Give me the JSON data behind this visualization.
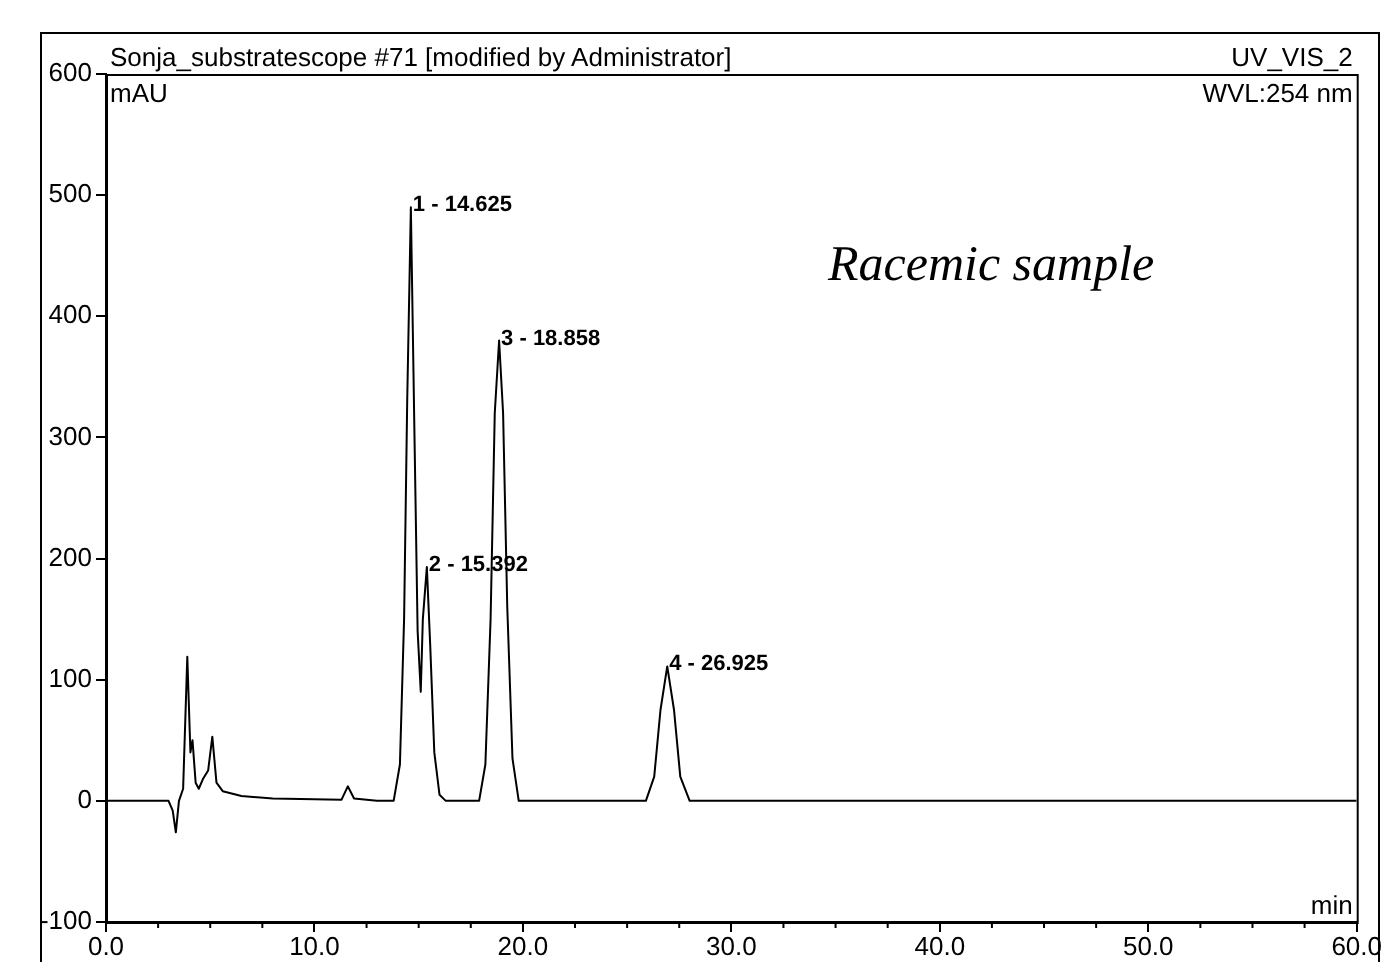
{
  "chart_data": {
    "type": "line",
    "title": "Sonja_substratescope #71 [modified by Administrator]",
    "subtitle": "UV_VIS_2",
    "xlabel": "min",
    "ylabel": "mAU",
    "series": [
      {
        "color": "#000000",
        "x": [
          0,
          3.0,
          3.2,
          3.35,
          3.5,
          3.7,
          3.9,
          4.05,
          4.15,
          4.3,
          4.45,
          4.65,
          4.9,
          5.1,
          5.3,
          5.6,
          6.5,
          8,
          11.3,
          11.6,
          11.9,
          13,
          13.8,
          14.1,
          14.3,
          14.45,
          14.625,
          14.8,
          14.95,
          15.1,
          15.2,
          15.392,
          15.55,
          15.75,
          16.0,
          16.3,
          17.9,
          18.2,
          18.45,
          18.65,
          18.858,
          19.05,
          19.25,
          19.5,
          19.8,
          25.9,
          26.3,
          26.6,
          26.925,
          27.25,
          27.55,
          28.0,
          60
        ],
        "values": [
          0,
          0,
          -8,
          -26,
          0,
          10,
          119,
          40,
          50,
          15,
          10,
          18,
          25,
          53,
          15,
          8,
          4,
          2,
          1,
          12,
          2,
          0,
          0,
          30,
          150,
          330,
          490,
          300,
          140,
          90,
          150,
          193,
          130,
          40,
          5,
          0,
          0,
          30,
          150,
          320,
          380,
          320,
          160,
          35,
          0,
          0,
          20,
          75,
          111,
          75,
          20,
          0,
          0
        ]
      }
    ],
    "xlim": [
      0,
      60
    ],
    "xticks": [
      {
        "value": 0,
        "label": "0.0"
      },
      {
        "value": 10,
        "label": "10.0"
      },
      {
        "value": 20,
        "label": "20.0"
      },
      {
        "value": 30,
        "label": "30.0"
      },
      {
        "value": 40,
        "label": "40.0"
      },
      {
        "value": 50,
        "label": "50.0"
      },
      {
        "value": 60,
        "label": "60.0"
      }
    ],
    "ylim": [
      -100,
      600
    ],
    "yticks": [
      -100,
      0,
      100,
      200,
      300,
      400,
      500,
      600
    ],
    "grid": false,
    "legend": false,
    "marker": "none",
    "line_style": "solid",
    "annotations": [
      {
        "text": "1 - 14.625",
        "x": 14.625,
        "y": 490
      },
      {
        "text": "2 - 15.392",
        "x": 15.392,
        "y": 193
      },
      {
        "text": "3 - 18.858",
        "x": 18.858,
        "y": 380
      },
      {
        "text": "4 - 26.925",
        "x": 26.925,
        "y": 111
      },
      "WVL:254 nm",
      "Racemic sample"
    ]
  }
}
